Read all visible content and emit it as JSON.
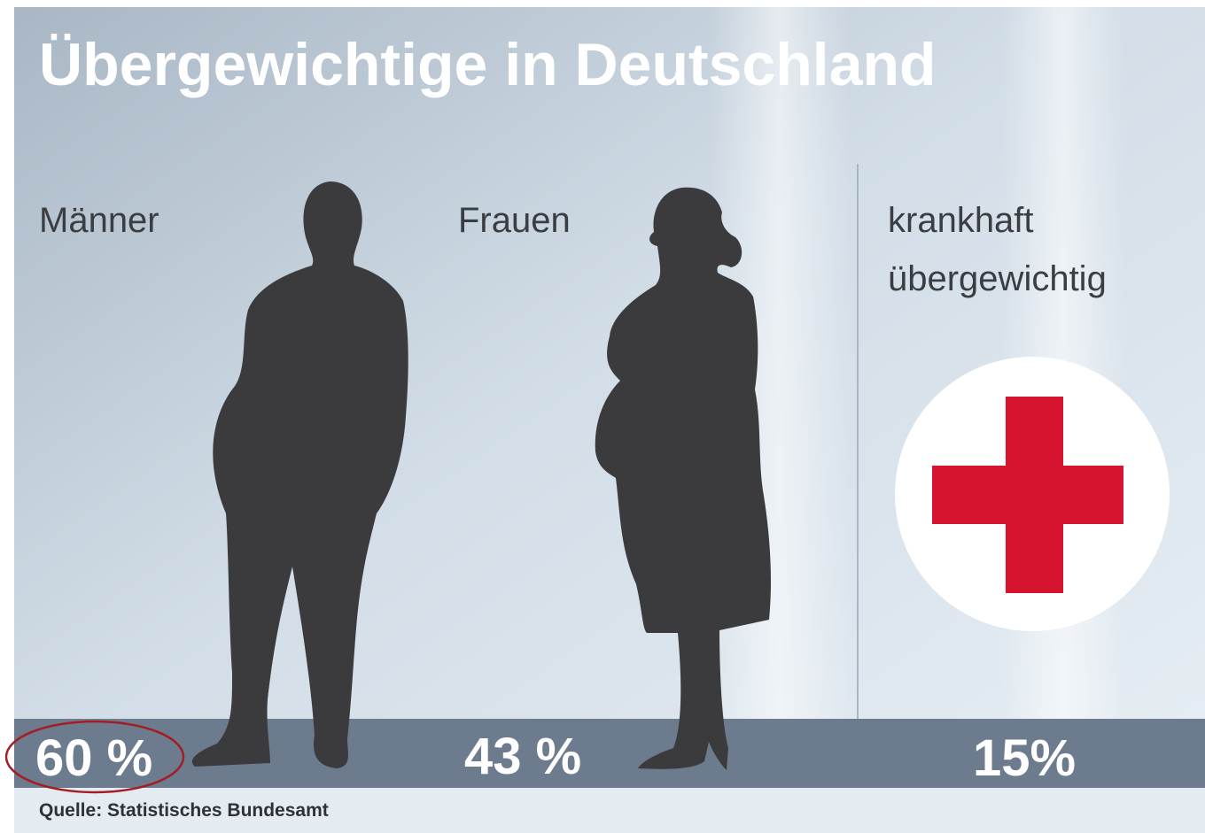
{
  "title": "Übergewichtige in Deutschland",
  "panels": [
    {
      "label": [
        "Männer"
      ],
      "value": "60 %"
    },
    {
      "label": [
        "Frauen"
      ],
      "value": "43 %"
    },
    {
      "label": [
        "krankhaft",
        "übergewichtig"
      ],
      "value": "15%"
    }
  ],
  "source": "Quelle: Statistisches Bundesamt"
}
